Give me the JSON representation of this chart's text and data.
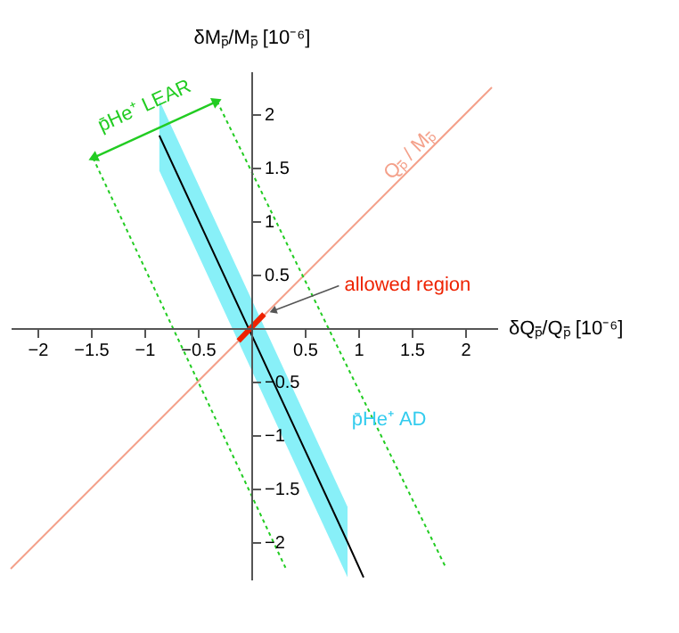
{
  "chart_data": {
    "type": "line",
    "xlabel": "δQₚ̄/Qₚ̄ [10⁻⁶]",
    "ylabel": "δMₚ̄/Mₚ̄ [10⁻⁶]",
    "xlim": [
      -2.25,
      2.3
    ],
    "ylim": [
      -2.35,
      2.4
    ],
    "xticks": [
      -2,
      -1.5,
      -1,
      -0.5,
      0.5,
      1,
      1.5,
      2
    ],
    "yticks": [
      -2,
      -1.5,
      -1,
      -0.5,
      0.5,
      1,
      1.5,
      2
    ],
    "grid": false,
    "series": [
      {
        "name": "p̄He⁺ AD",
        "color": "#000000",
        "x": [
          -0.86,
          0.9,
          1.05
        ],
        "values": [
          1.8,
          -2.0,
          -2.33
        ],
        "lower": [
          1.47,
          -2.33,
          null
        ],
        "upper": [
          2.13,
          -1.67,
          null
        ]
      },
      {
        "name": "Qₚ̄ / Mₚ̄",
        "color": "#f4a08a",
        "x": [
          -2.25,
          2.25
        ],
        "values": [
          -2.25,
          2.25
        ]
      },
      {
        "color": "#22cc22",
        "line_style": "dotted",
        "x": [
          -1.48,
          0.32
        ],
        "values": [
          1.59,
          -2.24
        ]
      },
      {
        "color": "#22cc22",
        "line_style": "dotted",
        "x": [
          -0.32,
          1.82
        ],
        "values": [
          2.12,
          -2.24
        ]
      },
      {
        "color": "#ee2200",
        "x": [
          -0.12,
          0.12
        ],
        "values": [
          -0.12,
          0.13
        ]
      }
    ],
    "annotations": [
      {
        "text": "p̄He⁺ LEAR",
        "x": -0.9,
        "y": 1.86
      },
      {
        "text": "allowed region",
        "x": 0.12,
        "y": 0.13
      }
    ]
  }
}
